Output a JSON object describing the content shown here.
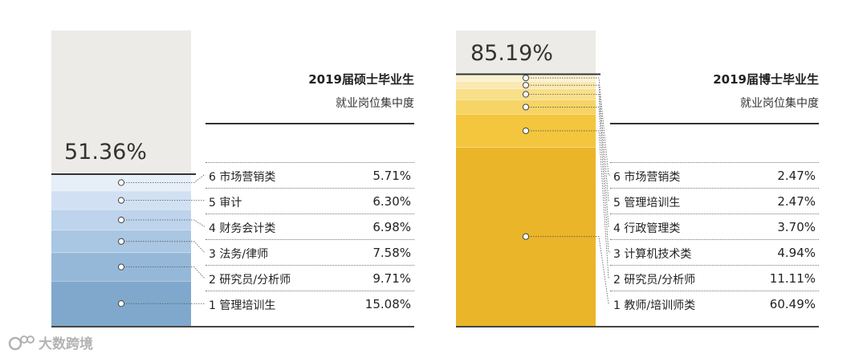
{
  "chart_data": [
    {
      "type": "stacked-column",
      "title": "2019届硕士毕业生",
      "subtitle": "就业岗位集中度",
      "total": "51.36%",
      "colors": [
        "#7fa8cc",
        "#95b8d9",
        "#a9c6e3",
        "#bdd4ec",
        "#d1e1f3",
        "#e6eef8"
      ],
      "items": [
        {
          "rank": "1",
          "name": "管理培训生",
          "value": 15.08,
          "label": "15.08%"
        },
        {
          "rank": "2",
          "name": "研究员/分析师",
          "value": 9.71,
          "label": "9.71%"
        },
        {
          "rank": "3",
          "name": "法务/律师",
          "value": 7.58,
          "label": "7.58%"
        },
        {
          "rank": "4",
          "name": "财务会计类",
          "value": 6.98,
          "label": "6.98%"
        },
        {
          "rank": "5",
          "name": "审计",
          "value": 6.3,
          "label": "6.30%"
        },
        {
          "rank": "6",
          "name": "市场营销类",
          "value": 5.71,
          "label": "5.71%"
        }
      ]
    },
    {
      "type": "stacked-column",
      "title": "2019届博士毕业生",
      "subtitle": "就业岗位集中度",
      "total": "85.19%",
      "colors": [
        "#ebb52a",
        "#f3c63d",
        "#f6d465",
        "#f8df89",
        "#fae9b1",
        "#fcf2d2"
      ],
      "items": [
        {
          "rank": "1",
          "name": "教师/培训师类",
          "value": 60.49,
          "label": "60.49%"
        },
        {
          "rank": "2",
          "name": "研究员/分析师",
          "value": 11.11,
          "label": "11.11%"
        },
        {
          "rank": "3",
          "name": "计算机技术类",
          "value": 4.94,
          "label": "4.94%"
        },
        {
          "rank": "4",
          "name": "行政管理类",
          "value": 3.7,
          "label": "3.70%"
        },
        {
          "rank": "5",
          "name": "管理培训生",
          "value": 2.47,
          "label": "2.47%"
        },
        {
          "rank": "6",
          "name": "市场营销类",
          "value": 2.47,
          "label": "2.47%"
        }
      ]
    }
  ],
  "watermark": {
    "text": "大数跨境"
  }
}
